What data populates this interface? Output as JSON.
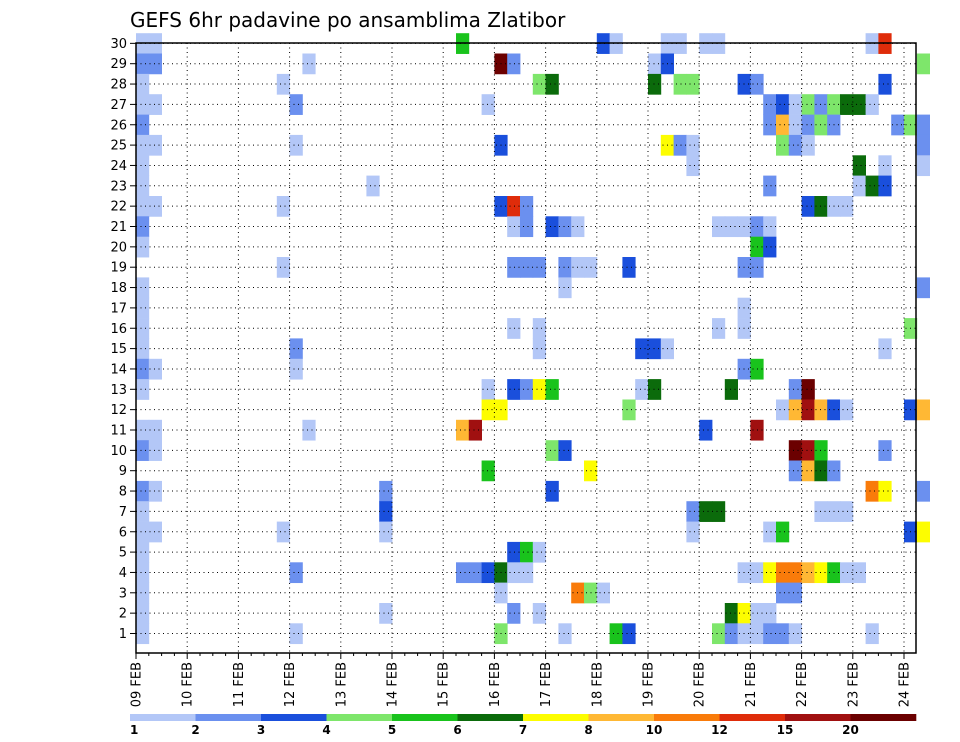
{
  "chart_data": {
    "type": "heatmap",
    "title": "GEFS 6hr padavine po ansamblima Zlatibor",
    "x_tick_labels": [
      "09 FEB",
      "10 FEB",
      "11 FEB",
      "12 FEB",
      "13 FEB",
      "14 FEB",
      "15 FEB",
      "16 FEB",
      "17 FEB",
      "18 FEB",
      "19 FEB",
      "20 FEB",
      "21 FEB",
      "22 FEB",
      "23 FEB",
      "24 FEB"
    ],
    "y_tick_labels": [
      "1",
      "2",
      "3",
      "4",
      "5",
      "6",
      "7",
      "8",
      "9",
      "10",
      "11",
      "12",
      "13",
      "14",
      "15",
      "16",
      "17",
      "18",
      "19",
      "20",
      "21",
      "22",
      "23",
      "24",
      "25",
      "26",
      "27",
      "28",
      "29",
      "30"
    ],
    "x_range": [
      0,
      61
    ],
    "y_range": [
      1,
      30
    ],
    "time_step": "6hr",
    "grid": "dotted",
    "colorbar": {
      "position": "bottom",
      "labels": [
        "1",
        "2",
        "3",
        "4",
        "5",
        "6",
        "7",
        "8",
        "10",
        "12",
        "15",
        "20"
      ],
      "colors": [
        "#b3c7f7",
        "#6b90ef",
        "#1a4fdc",
        "#7ee66b",
        "#19c31c",
        "#0b6b0b",
        "#fdfd00",
        "#ffb834",
        "#f97b0a",
        "#df2c0a",
        "#a01010",
        "#6b0000"
      ]
    },
    "cells": [
      [
        30,
        0,
        1
      ],
      [
        30,
        1,
        1
      ],
      [
        30,
        25,
        5
      ],
      [
        30,
        36,
        3
      ],
      [
        30,
        37,
        1
      ],
      [
        30,
        41,
        1
      ],
      [
        30,
        42,
        1
      ],
      [
        30,
        44,
        1
      ],
      [
        30,
        45,
        1
      ],
      [
        30,
        57,
        1
      ],
      [
        30,
        58,
        10
      ],
      [
        29,
        0,
        2
      ],
      [
        29,
        1,
        2
      ],
      [
        29,
        13,
        1
      ],
      [
        29,
        28,
        12
      ],
      [
        29,
        29,
        2
      ],
      [
        29,
        40,
        1
      ],
      [
        29,
        41,
        3
      ],
      [
        29,
        61,
        4
      ],
      [
        28,
        0,
        1
      ],
      [
        28,
        11,
        1
      ],
      [
        28,
        31,
        4
      ],
      [
        28,
        32,
        6
      ],
      [
        28,
        40,
        6
      ],
      [
        28,
        42,
        4
      ],
      [
        28,
        43,
        4
      ],
      [
        28,
        47,
        3
      ],
      [
        28,
        48,
        2
      ],
      [
        28,
        58,
        3
      ],
      [
        27,
        0,
        1
      ],
      [
        27,
        1,
        1
      ],
      [
        27,
        12,
        2
      ],
      [
        27,
        27,
        1
      ],
      [
        27,
        49,
        2
      ],
      [
        27,
        50,
        3
      ],
      [
        27,
        51,
        1
      ],
      [
        27,
        52,
        4
      ],
      [
        27,
        53,
        2
      ],
      [
        27,
        54,
        4
      ],
      [
        27,
        55,
        6
      ],
      [
        27,
        56,
        6
      ],
      [
        27,
        57,
        1
      ],
      [
        26,
        0,
        2
      ],
      [
        26,
        49,
        2
      ],
      [
        26,
        50,
        8
      ],
      [
        26,
        51,
        1
      ],
      [
        26,
        52,
        2
      ],
      [
        26,
        53,
        4
      ],
      [
        26,
        54,
        2
      ],
      [
        26,
        59,
        2
      ],
      [
        26,
        60,
        4
      ],
      [
        26,
        61,
        2
      ],
      [
        25,
        0,
        1
      ],
      [
        25,
        1,
        1
      ],
      [
        25,
        12,
        1
      ],
      [
        25,
        28,
        3
      ],
      [
        25,
        41,
        7
      ],
      [
        25,
        42,
        2
      ],
      [
        25,
        43,
        1
      ],
      [
        25,
        50,
        4
      ],
      [
        25,
        51,
        2
      ],
      [
        25,
        52,
        1
      ],
      [
        25,
        61,
        2
      ],
      [
        24,
        0,
        1
      ],
      [
        24,
        43,
        1
      ],
      [
        24,
        56,
        6
      ],
      [
        24,
        58,
        1
      ],
      [
        24,
        61,
        1
      ],
      [
        23,
        0,
        1
      ],
      [
        23,
        18,
        1
      ],
      [
        23,
        49,
        2
      ],
      [
        23,
        56,
        1
      ],
      [
        23,
        57,
        6
      ],
      [
        23,
        58,
        3
      ],
      [
        22,
        0,
        1
      ],
      [
        22,
        1,
        1
      ],
      [
        22,
        11,
        1
      ],
      [
        22,
        28,
        3
      ],
      [
        22,
        29,
        10
      ],
      [
        22,
        30,
        2
      ],
      [
        22,
        52,
        3
      ],
      [
        22,
        53,
        6
      ],
      [
        22,
        54,
        1
      ],
      [
        22,
        55,
        1
      ],
      [
        21,
        0,
        2
      ],
      [
        21,
        29,
        1
      ],
      [
        21,
        30,
        2
      ],
      [
        21,
        32,
        3
      ],
      [
        21,
        33,
        2
      ],
      [
        21,
        34,
        1
      ],
      [
        21,
        45,
        1
      ],
      [
        21,
        46,
        1
      ],
      [
        21,
        47,
        1
      ],
      [
        21,
        48,
        2
      ],
      [
        21,
        49,
        1
      ],
      [
        20,
        0,
        1
      ],
      [
        20,
        48,
        5
      ],
      [
        20,
        49,
        3
      ],
      [
        19,
        11,
        1
      ],
      [
        19,
        29,
        2
      ],
      [
        19,
        30,
        2
      ],
      [
        19,
        31,
        2
      ],
      [
        19,
        33,
        2
      ],
      [
        19,
        34,
        1
      ],
      [
        19,
        35,
        1
      ],
      [
        19,
        38,
        3
      ],
      [
        19,
        47,
        2
      ],
      [
        19,
        48,
        2
      ],
      [
        18,
        0,
        1
      ],
      [
        18,
        33,
        1
      ],
      [
        18,
        61,
        2
      ],
      [
        17,
        0,
        1
      ],
      [
        17,
        47,
        1
      ],
      [
        16,
        0,
        1
      ],
      [
        16,
        29,
        1
      ],
      [
        16,
        31,
        1
      ],
      [
        16,
        45,
        1
      ],
      [
        16,
        47,
        1
      ],
      [
        16,
        60,
        4
      ],
      [
        15,
        0,
        1
      ],
      [
        15,
        12,
        2
      ],
      [
        15,
        31,
        1
      ],
      [
        15,
        39,
        3
      ],
      [
        15,
        40,
        3
      ],
      [
        15,
        41,
        1
      ],
      [
        15,
        58,
        1
      ],
      [
        14,
        0,
        2
      ],
      [
        14,
        1,
        1
      ],
      [
        14,
        12,
        1
      ],
      [
        14,
        47,
        2
      ],
      [
        14,
        48,
        5
      ],
      [
        13,
        0,
        1
      ],
      [
        13,
        27,
        1
      ],
      [
        13,
        29,
        3
      ],
      [
        13,
        30,
        2
      ],
      [
        13,
        31,
        7
      ],
      [
        13,
        32,
        5
      ],
      [
        13,
        39,
        1
      ],
      [
        13,
        40,
        6
      ],
      [
        13,
        46,
        6
      ],
      [
        13,
        51,
        2
      ],
      [
        13,
        52,
        12
      ],
      [
        12,
        27,
        7
      ],
      [
        12,
        28,
        7
      ],
      [
        12,
        38,
        4
      ],
      [
        12,
        50,
        1
      ],
      [
        12,
        51,
        8
      ],
      [
        12,
        52,
        11
      ],
      [
        12,
        53,
        8
      ],
      [
        12,
        54,
        3
      ],
      [
        12,
        55,
        1
      ],
      [
        12,
        60,
        3
      ],
      [
        12,
        61,
        8
      ],
      [
        11,
        0,
        1
      ],
      [
        11,
        1,
        1
      ],
      [
        11,
        13,
        1
      ],
      [
        11,
        25,
        8
      ],
      [
        11,
        26,
        11
      ],
      [
        11,
        44,
        3
      ],
      [
        11,
        48,
        11
      ],
      [
        10,
        0,
        2
      ],
      [
        10,
        1,
        1
      ],
      [
        10,
        32,
        4
      ],
      [
        10,
        33,
        3
      ],
      [
        10,
        51,
        12
      ],
      [
        10,
        52,
        11
      ],
      [
        10,
        53,
        5
      ],
      [
        10,
        58,
        2
      ],
      [
        9,
        27,
        5
      ],
      [
        9,
        35,
        7
      ],
      [
        9,
        51,
        2
      ],
      [
        9,
        52,
        8
      ],
      [
        9,
        53,
        6
      ],
      [
        9,
        54,
        2
      ],
      [
        8,
        0,
        2
      ],
      [
        8,
        1,
        1
      ],
      [
        8,
        19,
        2
      ],
      [
        8,
        32,
        3
      ],
      [
        8,
        57,
        9
      ],
      [
        8,
        58,
        7
      ],
      [
        8,
        61,
        2
      ],
      [
        7,
        0,
        1
      ],
      [
        7,
        19,
        3
      ],
      [
        7,
        43,
        2
      ],
      [
        7,
        44,
        6
      ],
      [
        7,
        45,
        6
      ],
      [
        7,
        53,
        1
      ],
      [
        7,
        54,
        1
      ],
      [
        7,
        55,
        1
      ],
      [
        6,
        0,
        1
      ],
      [
        6,
        1,
        1
      ],
      [
        6,
        11,
        1
      ],
      [
        6,
        19,
        1
      ],
      [
        6,
        43,
        1
      ],
      [
        6,
        49,
        1
      ],
      [
        6,
        50,
        5
      ],
      [
        6,
        60,
        3
      ],
      [
        6,
        61,
        7
      ],
      [
        5,
        0,
        1
      ],
      [
        5,
        29,
        3
      ],
      [
        5,
        30,
        5
      ],
      [
        5,
        31,
        1
      ],
      [
        4,
        0,
        1
      ],
      [
        4,
        12,
        2
      ],
      [
        4,
        25,
        2
      ],
      [
        4,
        26,
        2
      ],
      [
        4,
        27,
        3
      ],
      [
        4,
        28,
        6
      ],
      [
        4,
        29,
        1
      ],
      [
        4,
        30,
        1
      ],
      [
        4,
        47,
        1
      ],
      [
        4,
        48,
        1
      ],
      [
        4,
        49,
        7
      ],
      [
        4,
        50,
        9
      ],
      [
        4,
        51,
        9
      ],
      [
        4,
        52,
        8
      ],
      [
        4,
        53,
        7
      ],
      [
        4,
        54,
        5
      ],
      [
        4,
        55,
        1
      ],
      [
        4,
        56,
        1
      ],
      [
        3,
        0,
        1
      ],
      [
        3,
        28,
        1
      ],
      [
        3,
        34,
        9
      ],
      [
        3,
        35,
        4
      ],
      [
        3,
        36,
        1
      ],
      [
        3,
        50,
        2
      ],
      [
        3,
        51,
        2
      ],
      [
        2,
        0,
        1
      ],
      [
        2,
        19,
        1
      ],
      [
        2,
        29,
        2
      ],
      [
        2,
        31,
        1
      ],
      [
        2,
        46,
        6
      ],
      [
        2,
        47,
        7
      ],
      [
        2,
        48,
        1
      ],
      [
        2,
        49,
        1
      ],
      [
        1,
        0,
        1
      ],
      [
        1,
        12,
        1
      ],
      [
        1,
        28,
        4
      ],
      [
        1,
        33,
        1
      ],
      [
        1,
        37,
        5
      ],
      [
        1,
        38,
        3
      ],
      [
        1,
        45,
        4
      ],
      [
        1,
        46,
        2
      ],
      [
        1,
        47,
        1
      ],
      [
        1,
        48,
        1
      ],
      [
        1,
        49,
        2
      ],
      [
        1,
        50,
        2
      ],
      [
        1,
        51,
        1
      ],
      [
        1,
        57,
        1
      ]
    ]
  }
}
